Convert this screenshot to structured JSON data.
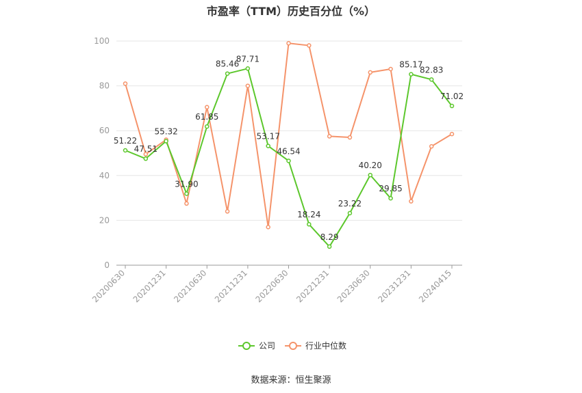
{
  "chart_data": {
    "type": "line",
    "title": "市盈率（TTM）历史百分位（%）",
    "source": "数据来源：恒生聚源",
    "ylim": [
      0,
      100
    ],
    "yticks": [
      0,
      20,
      40,
      60,
      80,
      100
    ],
    "x_tick_labels": [
      "20200630",
      "20201231",
      "20210630",
      "20211231",
      "20220630",
      "20221231",
      "20230630",
      "20231231",
      "20240415"
    ],
    "grid": true,
    "legend_position": "bottom",
    "series": [
      {
        "name": "公司",
        "color": "#5cc72c",
        "show_labels": true,
        "values": [
          51.22,
          47.51,
          55.32,
          31.9,
          61.85,
          85.46,
          87.71,
          53.17,
          46.54,
          18.24,
          8.29,
          23.22,
          40.2,
          29.85,
          85.17,
          82.83,
          71.02
        ]
      },
      {
        "name": "行业中位数",
        "color": "#f5936a",
        "show_labels": false,
        "values": [
          81,
          49.5,
          56,
          27.5,
          70.5,
          24,
          80,
          17,
          99,
          98,
          57.5,
          57,
          86,
          87.5,
          28.5,
          53,
          58.5
        ]
      }
    ]
  }
}
